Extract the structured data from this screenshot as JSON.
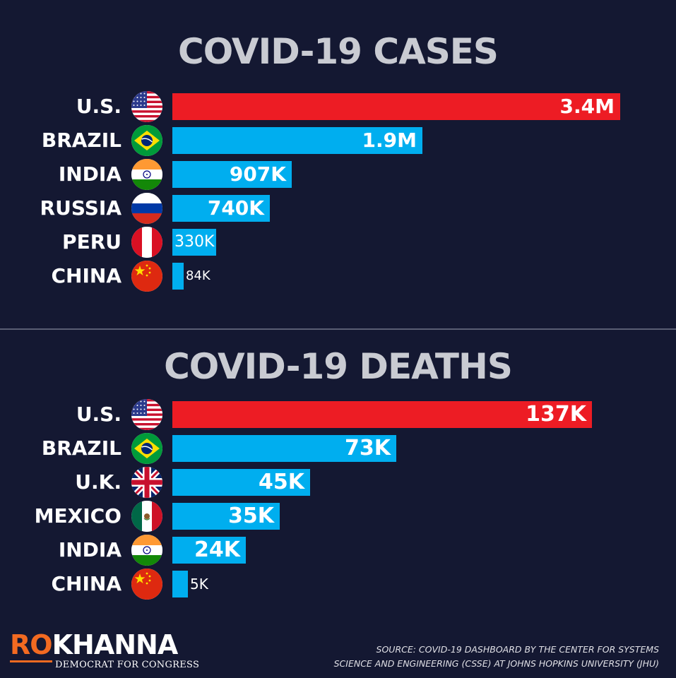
{
  "chart_data": [
    {
      "type": "bar",
      "orientation": "horizontal",
      "title": "COVID-19 CASES",
      "categories": [
        "U.S.",
        "BRAZIL",
        "INDIA",
        "RUSSIA",
        "PERU",
        "CHINA"
      ],
      "values": [
        3400000,
        1900000,
        907000,
        740000,
        330000,
        84000
      ],
      "value_labels": [
        "3.4M",
        "1.9M",
        "907K",
        "740K",
        "330K",
        "84K"
      ],
      "flags": [
        "us-flag-icon",
        "brazil-flag-icon",
        "india-flag-icon",
        "russia-flag-icon",
        "peru-flag-icon",
        "china-flag-icon"
      ],
      "xlim": [
        0,
        3400000
      ],
      "grid": false,
      "colors": {
        "highlight": "#ed1c24",
        "default": "#00aeef"
      }
    },
    {
      "type": "bar",
      "orientation": "horizontal",
      "title": "COVID-19 DEATHS",
      "categories": [
        "U.S.",
        "BRAZIL",
        "U.K.",
        "MEXICO",
        "INDIA",
        "CHINA"
      ],
      "values": [
        137000,
        73000,
        45000,
        35000,
        24000,
        5000
      ],
      "value_labels": [
        "137K",
        "73K",
        "45K",
        "35K",
        "24K",
        "5K"
      ],
      "flags": [
        "us-flag-icon",
        "brazil-flag-icon",
        "uk-flag-icon",
        "mexico-flag-icon",
        "india-flag-icon",
        "china-flag-icon"
      ],
      "xlim": [
        0,
        137000
      ],
      "grid": false,
      "colors": {
        "highlight": "#ed1c24",
        "default": "#00aeef"
      }
    }
  ],
  "logo": {
    "ro": "RO",
    "khanna": "KHANNA",
    "tagline": "DEMOCRAT FOR CONGRESS"
  },
  "source": {
    "line1": "SOURCE: COVID-19 DASHBOARD BY THE CENTER FOR SYSTEMS",
    "line2": "SCIENCE AND ENGINEERING (CSSE) AT JOHNS HOPKINS UNIVERSITY (JHU)"
  },
  "colors": {
    "background": "#141832",
    "title": "#c9cbd2",
    "logo_accent": "#f26a21"
  }
}
